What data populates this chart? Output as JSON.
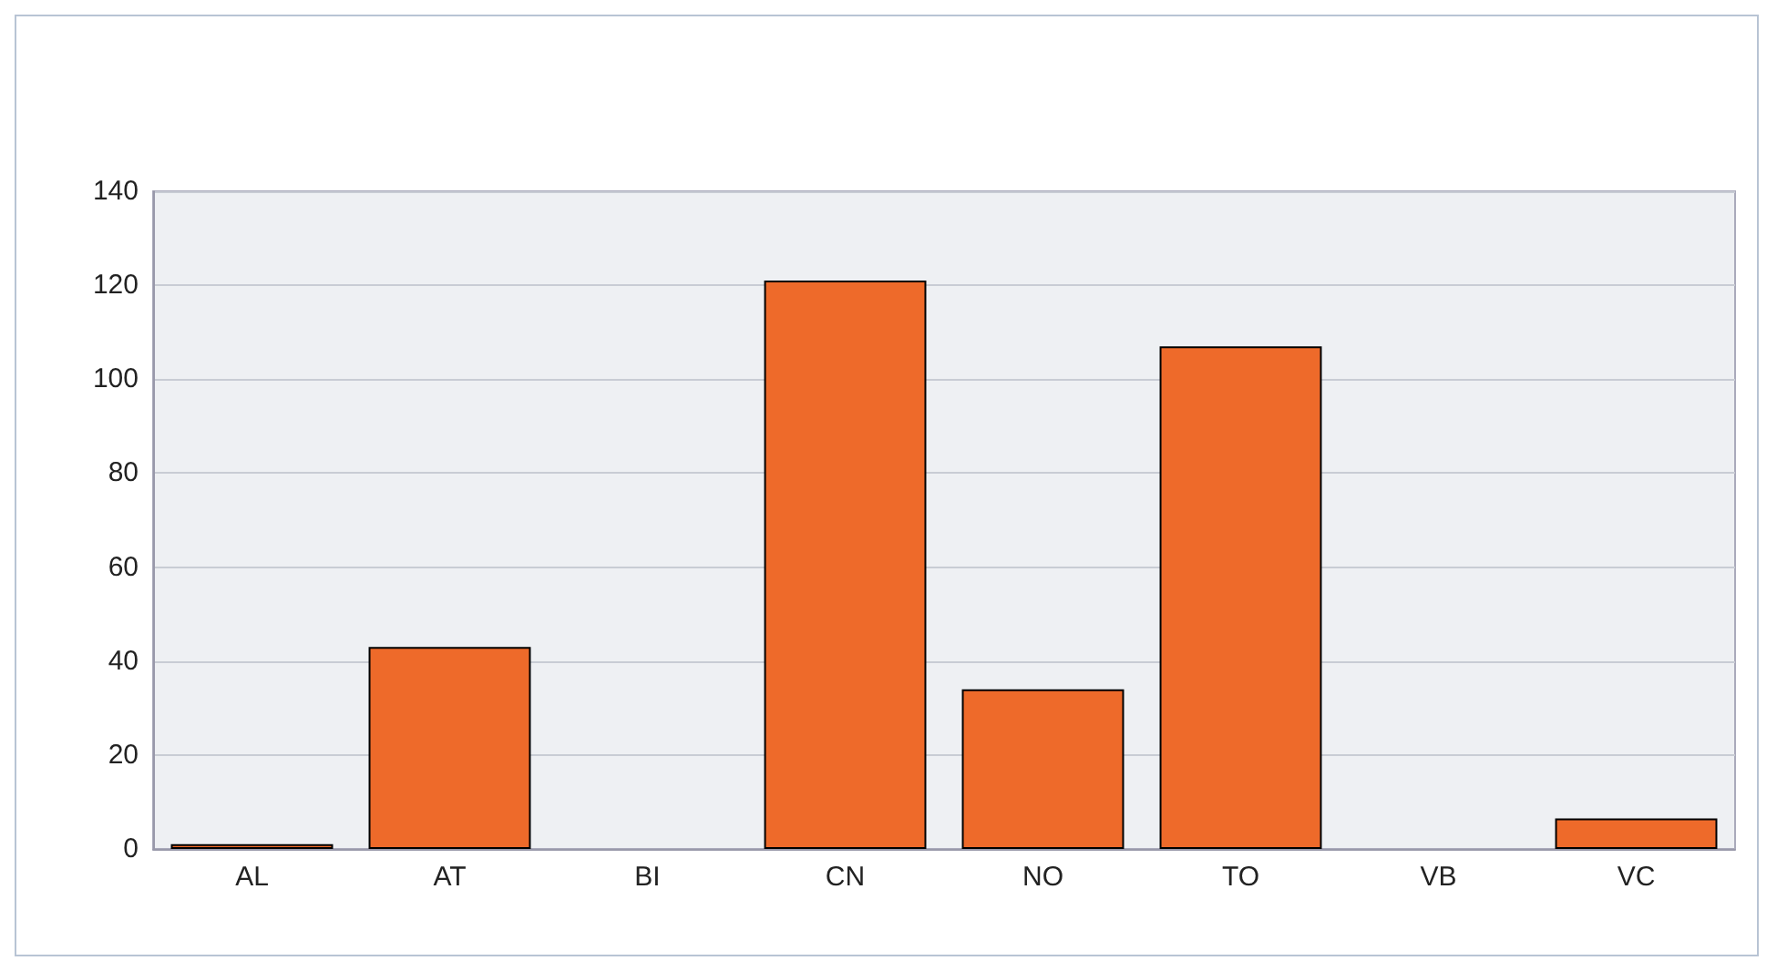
{
  "chart_data": {
    "type": "bar",
    "categories": [
      "AL",
      "AT",
      "BI",
      "CN",
      "NO",
      "TO",
      "VB",
      "VC"
    ],
    "values": [
      1,
      43,
      0,
      121,
      34,
      107,
      0,
      6.5
    ],
    "color": "#ee6a2a",
    "ylim": [
      0,
      140
    ],
    "yticks": [
      0,
      20,
      40,
      60,
      80,
      100,
      120,
      140
    ],
    "grid": "y"
  }
}
